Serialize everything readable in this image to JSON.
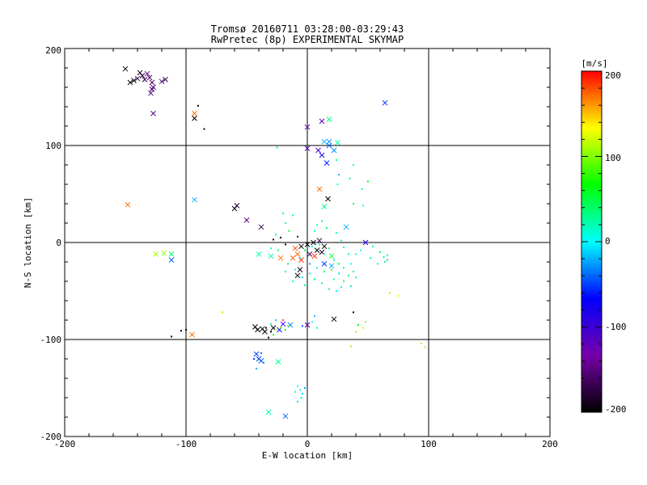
{
  "chart_data": {
    "type": "scatter",
    "title": "Tromsø 20160711 03:28:00-03:29:43",
    "subtitle": "RwPretec (8p) EXPERIMENTAL SKYMAP",
    "xlabel": "E-W location [km]",
    "ylabel": "N-S location [km]",
    "xlim": [
      -200,
      200
    ],
    "ylim": [
      -200,
      200
    ],
    "xticks": [
      "-200",
      "-100",
      "0",
      "100",
      "200"
    ],
    "yticks": [
      "-200",
      "-100",
      "0",
      "100",
      "200"
    ],
    "grid": true,
    "colorbar": {
      "label": "[m/s]",
      "range": [
        -200,
        200
      ],
      "ticks": [
        "200",
        "100",
        "0",
        "-100",
        "-200"
      ],
      "colormap": [
        "#000000",
        "#7700aa",
        "#0000ff",
        "#00ffff",
        "#00ff00",
        "#ffff00",
        "#ff0000"
      ]
    },
    "series": [
      {
        "marker": "x",
        "points": [
          [
            -150,
            179,
            -200
          ],
          [
            -146,
            165,
            -200
          ],
          [
            -143,
            167,
            -200
          ],
          [
            -140,
            169,
            -170
          ],
          [
            -138,
            175,
            -180
          ],
          [
            -136,
            172,
            -180
          ],
          [
            -134,
            168,
            -170
          ],
          [
            -132,
            174,
            -150
          ],
          [
            -130,
            170,
            -160
          ],
          [
            -128,
            165,
            -160
          ],
          [
            -128,
            158,
            -160
          ],
          [
            -129,
            154,
            -160
          ],
          [
            -127,
            160,
            -150
          ],
          [
            -120,
            166,
            -160
          ],
          [
            -117,
            168,
            -170
          ],
          [
            -127,
            133,
            -150
          ],
          [
            -93,
            133,
            170
          ],
          [
            -93,
            44,
            -20
          ],
          [
            -148,
            39,
            170
          ],
          [
            -93,
            128,
            -200
          ],
          [
            -60,
            35,
            -200
          ],
          [
            -58,
            38,
            -180
          ],
          [
            -50,
            23,
            -150
          ],
          [
            -38,
            16,
            -170
          ],
          [
            10,
            55,
            170
          ],
          [
            17,
            45,
            -200
          ],
          [
            14,
            37,
            30
          ],
          [
            32,
            16,
            -20
          ],
          [
            48,
            0,
            -80
          ],
          [
            12,
            125,
            -120
          ],
          [
            18,
            127,
            30
          ],
          [
            64,
            144,
            -50
          ],
          [
            0,
            119,
            -120
          ],
          [
            0,
            97,
            -120
          ],
          [
            9,
            95,
            -110
          ],
          [
            12,
            90,
            -80
          ],
          [
            16,
            82,
            -60
          ],
          [
            18,
            100,
            -40
          ],
          [
            22,
            95,
            -30
          ],
          [
            14,
            104,
            -20
          ],
          [
            18,
            104,
            -30
          ],
          [
            25,
            103,
            20
          ],
          [
            -125,
            -12,
            110
          ],
          [
            -118,
            -11,
            100
          ],
          [
            -112,
            -12,
            40
          ],
          [
            -112,
            -18,
            -40
          ],
          [
            -40,
            -12,
            20
          ],
          [
            -30,
            -14,
            30
          ],
          [
            -22,
            -16,
            170
          ],
          [
            -12,
            -16,
            180
          ],
          [
            -8,
            -12,
            170
          ],
          [
            -5,
            -18,
            190
          ],
          [
            -10,
            -6,
            180
          ],
          [
            -5,
            -4,
            -200
          ],
          [
            0,
            -2,
            -200
          ],
          [
            5,
            0,
            -190
          ],
          [
            10,
            2,
            -160
          ],
          [
            14,
            -4,
            -200
          ],
          [
            20,
            -14,
            60
          ],
          [
            -6,
            -28,
            -190
          ],
          [
            -8,
            -34,
            -200
          ],
          [
            14,
            -22,
            -50
          ],
          [
            20,
            -24,
            -20
          ],
          [
            -95,
            -95,
            170
          ],
          [
            -43,
            -87,
            -200
          ],
          [
            -41,
            -90,
            -200
          ],
          [
            -37,
            -89,
            -190
          ],
          [
            -35,
            -92,
            -200
          ],
          [
            -28,
            -88,
            -200
          ],
          [
            -23,
            -90,
            -60
          ],
          [
            -20,
            -84,
            -90
          ],
          [
            -14,
            -85,
            -30
          ],
          [
            0,
            -85,
            -120
          ],
          [
            22,
            -79,
            -200
          ],
          [
            -42,
            -115,
            -50
          ],
          [
            -40,
            -120,
            -50
          ],
          [
            -38,
            -122,
            -40
          ],
          [
            -24,
            -123,
            30
          ],
          [
            -32,
            -175,
            20
          ],
          [
            -18,
            -179,
            -40
          ],
          [
            12,
            -10,
            -180
          ],
          [
            8,
            -8,
            -200
          ],
          [
            2,
            -12,
            -160
          ],
          [
            6,
            -14,
            190
          ]
        ]
      },
      {
        "marker": "dot",
        "points": [
          [
            -90,
            141,
            -200
          ],
          [
            -85,
            117,
            -200
          ],
          [
            -100,
            -90,
            -200
          ],
          [
            -104,
            -91,
            -200
          ],
          [
            -112,
            -97,
            -200
          ],
          [
            -70,
            -72,
            110
          ],
          [
            -25,
            98,
            30
          ],
          [
            38,
            80,
            20
          ],
          [
            35,
            66,
            30
          ],
          [
            50,
            63,
            50
          ],
          [
            45,
            55,
            10
          ],
          [
            38,
            40,
            40
          ],
          [
            46,
            38,
            10
          ],
          [
            24,
            85,
            30
          ],
          [
            26,
            70,
            -20
          ],
          [
            25,
            60,
            0
          ],
          [
            -20,
            30,
            40
          ],
          [
            -18,
            20,
            10
          ],
          [
            -12,
            28,
            20
          ],
          [
            -15,
            12,
            50
          ],
          [
            -22,
            5,
            -200
          ],
          [
            -28,
            3,
            -200
          ],
          [
            -18,
            -2,
            -200
          ],
          [
            -8,
            6,
            -160
          ],
          [
            6,
            12,
            20
          ],
          [
            8,
            18,
            10
          ],
          [
            12,
            22,
            30
          ],
          [
            16,
            15,
            40
          ],
          [
            24,
            10,
            20
          ],
          [
            28,
            2,
            10
          ],
          [
            30,
            -5,
            30
          ],
          [
            34,
            -12,
            20
          ],
          [
            36,
            -22,
            0
          ],
          [
            38,
            -30,
            40
          ],
          [
            40,
            -36,
            10
          ],
          [
            36,
            -45,
            20
          ],
          [
            30,
            -40,
            40
          ],
          [
            26,
            -32,
            -10
          ],
          [
            22,
            -38,
            20
          ],
          [
            14,
            -30,
            30
          ],
          [
            8,
            -26,
            10
          ],
          [
            2,
            -32,
            20
          ],
          [
            -4,
            -36,
            -10
          ],
          [
            -10,
            -28,
            0
          ],
          [
            -16,
            -22,
            30
          ],
          [
            -24,
            -8,
            40
          ],
          [
            -30,
            -6,
            20
          ],
          [
            -26,
            8,
            10
          ],
          [
            -18,
            -30,
            30
          ],
          [
            -12,
            -40,
            10
          ],
          [
            -2,
            -44,
            20
          ],
          [
            6,
            -38,
            40
          ],
          [
            12,
            -42,
            20
          ],
          [
            18,
            -48,
            30
          ],
          [
            24,
            -50,
            0
          ],
          [
            28,
            -46,
            10
          ],
          [
            20,
            -28,
            50
          ],
          [
            14,
            -12,
            20
          ],
          [
            2,
            -22,
            -20
          ],
          [
            -6,
            -16,
            30
          ],
          [
            -2,
            -8,
            50
          ],
          [
            4,
            -4,
            10
          ],
          [
            10,
            -2,
            20
          ],
          [
            18,
            -6,
            30
          ],
          [
            22,
            -18,
            10
          ],
          [
            26,
            -22,
            40
          ],
          [
            30,
            -26,
            20
          ],
          [
            34,
            -34,
            30
          ],
          [
            40,
            -12,
            20
          ],
          [
            44,
            -8,
            0
          ],
          [
            52,
            -16,
            30
          ],
          [
            58,
            -22,
            20
          ],
          [
            63,
            -15,
            10
          ],
          [
            64,
            -20,
            30
          ],
          [
            66,
            -18,
            40
          ],
          [
            66,
            -13,
            20
          ],
          [
            60,
            -10,
            40
          ],
          [
            54,
            -4,
            20
          ],
          [
            68,
            -52,
            110
          ],
          [
            75,
            -55,
            130
          ],
          [
            38,
            -72,
            -200
          ],
          [
            48,
            -82,
            110
          ],
          [
            46,
            -88,
            120
          ],
          [
            40,
            -92,
            110
          ],
          [
            42,
            -85,
            60
          ],
          [
            36,
            -107,
            110
          ],
          [
            94,
            -104,
            110
          ],
          [
            97,
            -108,
            110
          ],
          [
            -28,
            -95,
            60
          ],
          [
            -22,
            -88,
            100
          ],
          [
            -18,
            -90,
            60
          ],
          [
            -30,
            -84,
            30
          ],
          [
            -26,
            -80,
            -10
          ],
          [
            -44,
            -120,
            -50
          ],
          [
            -38,
            -114,
            -40
          ],
          [
            -36,
            -124,
            -30
          ],
          [
            -42,
            -130,
            -20
          ],
          [
            -8,
            -148,
            10
          ],
          [
            -6,
            -152,
            0
          ],
          [
            -4,
            -156,
            -10
          ],
          [
            -10,
            -154,
            10
          ],
          [
            -5,
            -160,
            20
          ],
          [
            -8,
            -164,
            -10
          ],
          [
            -2,
            -150,
            -20
          ],
          [
            6,
            -76,
            -20
          ],
          [
            4,
            -82,
            0
          ],
          [
            -4,
            -86,
            -40
          ],
          [
            8,
            -88,
            20
          ],
          [
            -34,
            -88,
            -200
          ],
          [
            -30,
            -92,
            -200
          ],
          [
            -32,
            -98,
            -200
          ],
          [
            -26,
            -90,
            120
          ],
          [
            -20,
            -80,
            180
          ],
          [
            -16,
            -86,
            110
          ]
        ]
      }
    ]
  }
}
